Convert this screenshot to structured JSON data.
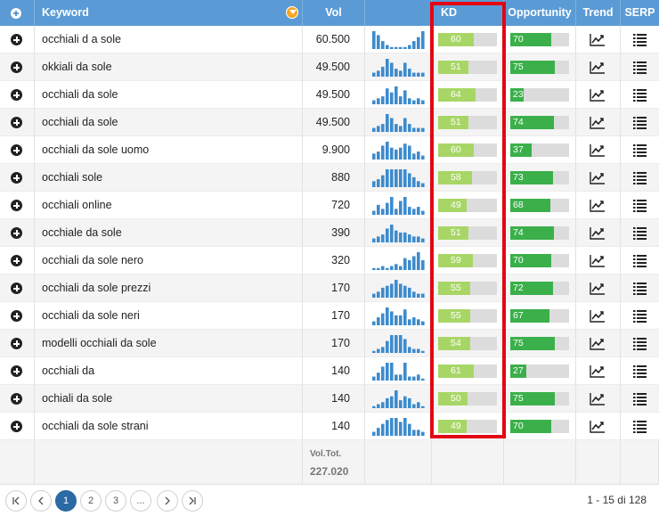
{
  "header": {
    "keyword": "Keyword",
    "vol": "Vol",
    "kd": "KD",
    "opportunity": "Opportunity",
    "trend": "Trend",
    "serp": "SERP"
  },
  "rows": [
    {
      "keyword": "occhiali d a sole",
      "vol": "60.500",
      "kd": 60,
      "opp": 70,
      "spark": [
        9,
        7,
        4,
        2,
        1,
        1,
        1,
        1,
        2,
        4,
        6,
        9
      ]
    },
    {
      "keyword": "okkiali da sole",
      "vol": "49.500",
      "kd": 51,
      "opp": 75,
      "spark": [
        2,
        3,
        5,
        9,
        7,
        4,
        3,
        7,
        4,
        2,
        2,
        2
      ]
    },
    {
      "keyword": "occhiali da sole",
      "vol": "49.500",
      "kd": 64,
      "opp": 23,
      "spark": [
        2,
        3,
        4,
        8,
        6,
        9,
        4,
        7,
        3,
        2,
        3,
        2
      ]
    },
    {
      "keyword": "occhiali da sole",
      "vol": "49.500",
      "kd": 51,
      "opp": 74,
      "spark": [
        2,
        3,
        4,
        9,
        7,
        4,
        3,
        7,
        4,
        2,
        2,
        2
      ]
    },
    {
      "keyword": "occhiali da sole uomo",
      "vol": "9.900",
      "kd": 60,
      "opp": 37,
      "spark": [
        3,
        4,
        7,
        9,
        6,
        5,
        6,
        8,
        7,
        3,
        4,
        2
      ]
    },
    {
      "keyword": "occhiali sole",
      "vol": "880",
      "kd": 58,
      "opp": 73,
      "spark": [
        3,
        4,
        6,
        9,
        9,
        9,
        9,
        9,
        7,
        5,
        3,
        2
      ]
    },
    {
      "keyword": "occhiali online",
      "vol": "720",
      "kd": 49,
      "opp": 68,
      "spark": [
        2,
        5,
        3,
        6,
        9,
        3,
        7,
        9,
        4,
        3,
        4,
        2
      ]
    },
    {
      "keyword": "occhiale da sole",
      "vol": "390",
      "kd": 51,
      "opp": 74,
      "spark": [
        2,
        3,
        4,
        7,
        9,
        6,
        5,
        5,
        4,
        3,
        3,
        2
      ]
    },
    {
      "keyword": "occhiali da sole nero",
      "vol": "320",
      "kd": 59,
      "opp": 70,
      "spark": [
        1,
        1,
        2,
        1,
        2,
        3,
        2,
        6,
        5,
        7,
        9,
        5
      ]
    },
    {
      "keyword": "occhiali da sole prezzi",
      "vol": "170",
      "kd": 55,
      "opp": 72,
      "spark": [
        2,
        3,
        5,
        6,
        7,
        9,
        7,
        6,
        5,
        3,
        2,
        2
      ]
    },
    {
      "keyword": "occhiali da sole neri",
      "vol": "170",
      "kd": 55,
      "opp": 67,
      "spark": [
        2,
        4,
        6,
        9,
        7,
        5,
        5,
        8,
        3,
        4,
        3,
        2
      ]
    },
    {
      "keyword": "modelli occhiali da sole",
      "vol": "170",
      "kd": 54,
      "opp": 75,
      "spark": [
        1,
        2,
        3,
        6,
        9,
        9,
        9,
        7,
        3,
        2,
        2,
        1
      ]
    },
    {
      "keyword": "occhiali da",
      "vol": "140",
      "kd": 61,
      "opp": 27,
      "spark": [
        2,
        4,
        7,
        9,
        9,
        3,
        3,
        9,
        2,
        2,
        3,
        1
      ]
    },
    {
      "keyword": "ochiali da sole",
      "vol": "140",
      "kd": 50,
      "opp": 75,
      "spark": [
        1,
        2,
        3,
        5,
        6,
        9,
        4,
        6,
        5,
        2,
        3,
        1
      ]
    },
    {
      "keyword": "occhiali da sole strani",
      "vol": "140",
      "kd": 49,
      "opp": 70,
      "spark": [
        2,
        4,
        6,
        8,
        9,
        9,
        7,
        9,
        6,
        3,
        3,
        2
      ]
    }
  ],
  "footer": {
    "vol_tot_label": "Vol.Tot.",
    "vol_tot_value": "227.020"
  },
  "pagination": {
    "pages": [
      "1",
      "2",
      "3",
      "..."
    ],
    "active_page": "1",
    "info": "1 - 15 di 128"
  },
  "colors": {
    "header": "#5b9bd5",
    "kd_fill": "#a8d666",
    "opp_fill": "#3bb04a",
    "highlight": "#e30613",
    "spark": "#3d8bcd"
  },
  "icons": {
    "add": "plus-circle-icon",
    "filter": "filter-icon",
    "trend": "line-chart-icon",
    "serp": "list-icon"
  }
}
